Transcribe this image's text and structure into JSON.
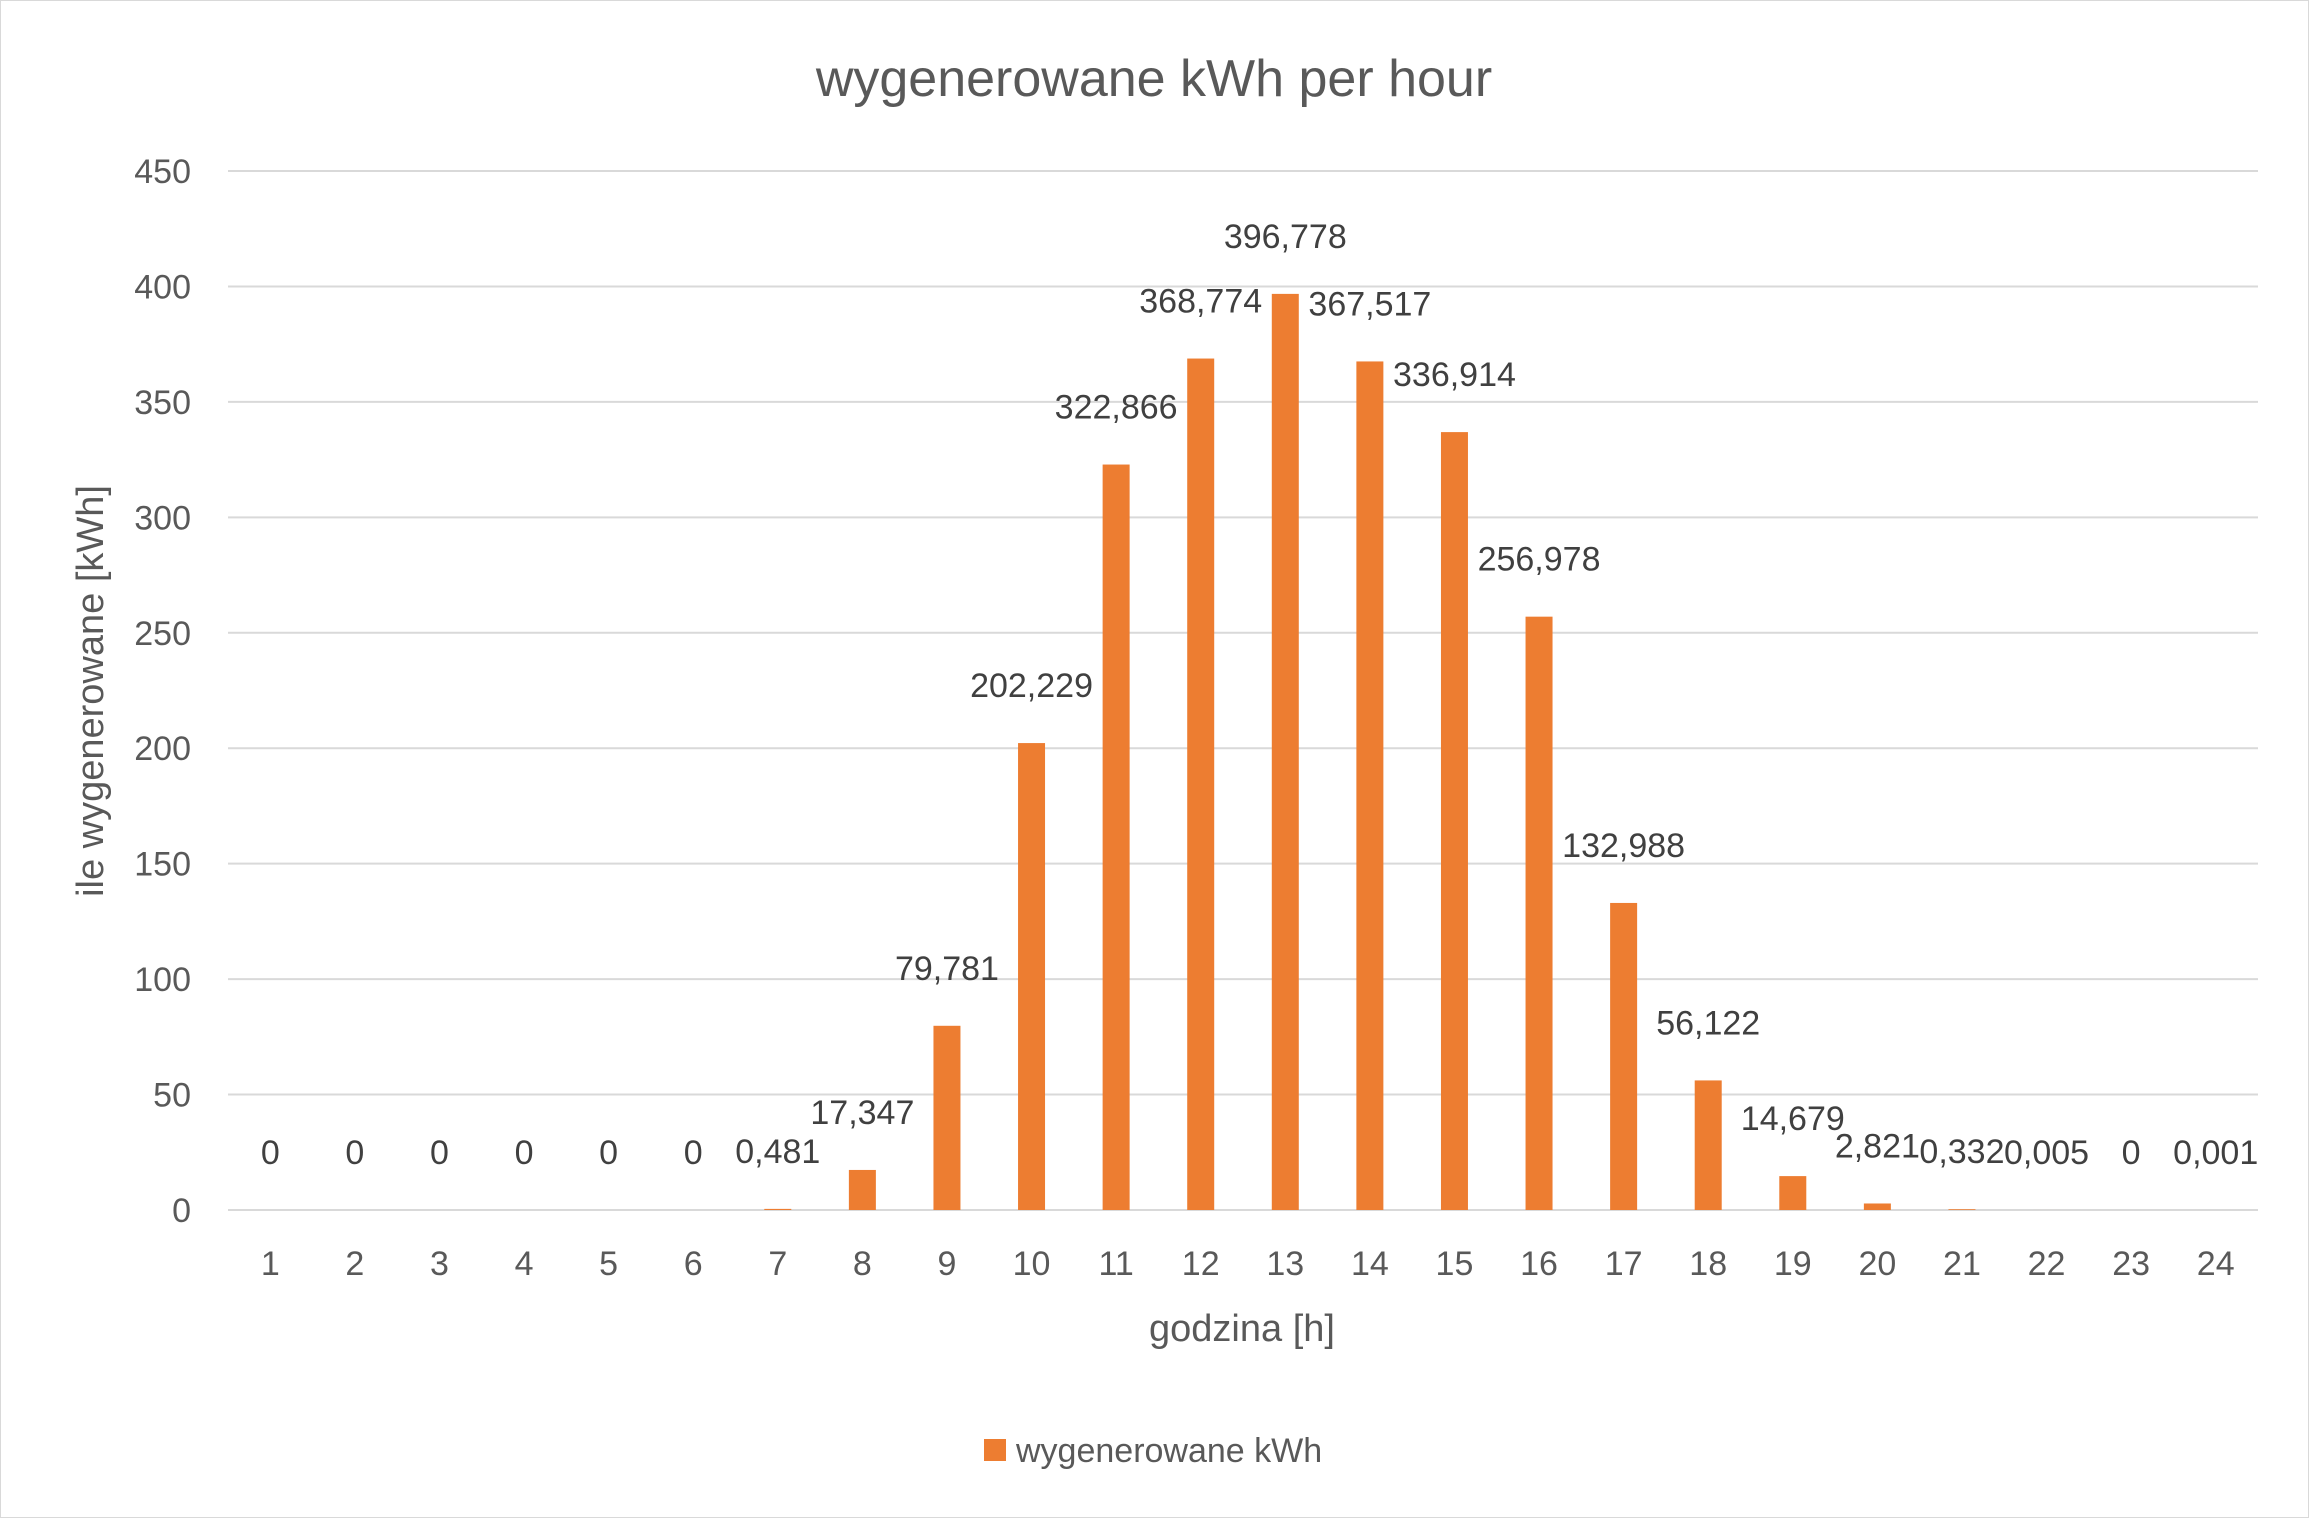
{
  "chart_data": {
    "type": "bar",
    "title": "wygenerowane kWh per hour",
    "xlabel": "godzina [h]",
    "ylabel": "ile wygenerowane [kWh]",
    "ylim": [
      0,
      450
    ],
    "yticks": [
      0,
      50,
      100,
      150,
      200,
      250,
      300,
      350,
      400,
      450
    ],
    "grid": true,
    "legend_position": "bottom",
    "categories": [
      "1",
      "2",
      "3",
      "4",
      "5",
      "6",
      "7",
      "8",
      "9",
      "10",
      "11",
      "12",
      "13",
      "14",
      "15",
      "16",
      "17",
      "18",
      "19",
      "20",
      "21",
      "22",
      "23",
      "24"
    ],
    "series": [
      {
        "name": "wygenerowane kWh",
        "color": "#ED7D31",
        "values": [
          0,
          0,
          0,
          0,
          0,
          0,
          0.481,
          17.347,
          79.781,
          202.229,
          322.866,
          368.774,
          396.778,
          367.517,
          336.914,
          256.978,
          132.988,
          56.122,
          14.679,
          2.821,
          0.332,
          0.005,
          0,
          0.001
        ],
        "data_labels": [
          "0",
          "0",
          "0",
          "0",
          "0",
          "0",
          "0,481",
          "17,347",
          "79,781",
          "202,229",
          "322,866",
          "368,774",
          "396,778",
          "367,517",
          "336,914",
          "256,978",
          "132,988",
          "56,122",
          "14,679",
          "2,821",
          "0,332",
          "0,005",
          "0",
          "0,001"
        ]
      }
    ]
  }
}
